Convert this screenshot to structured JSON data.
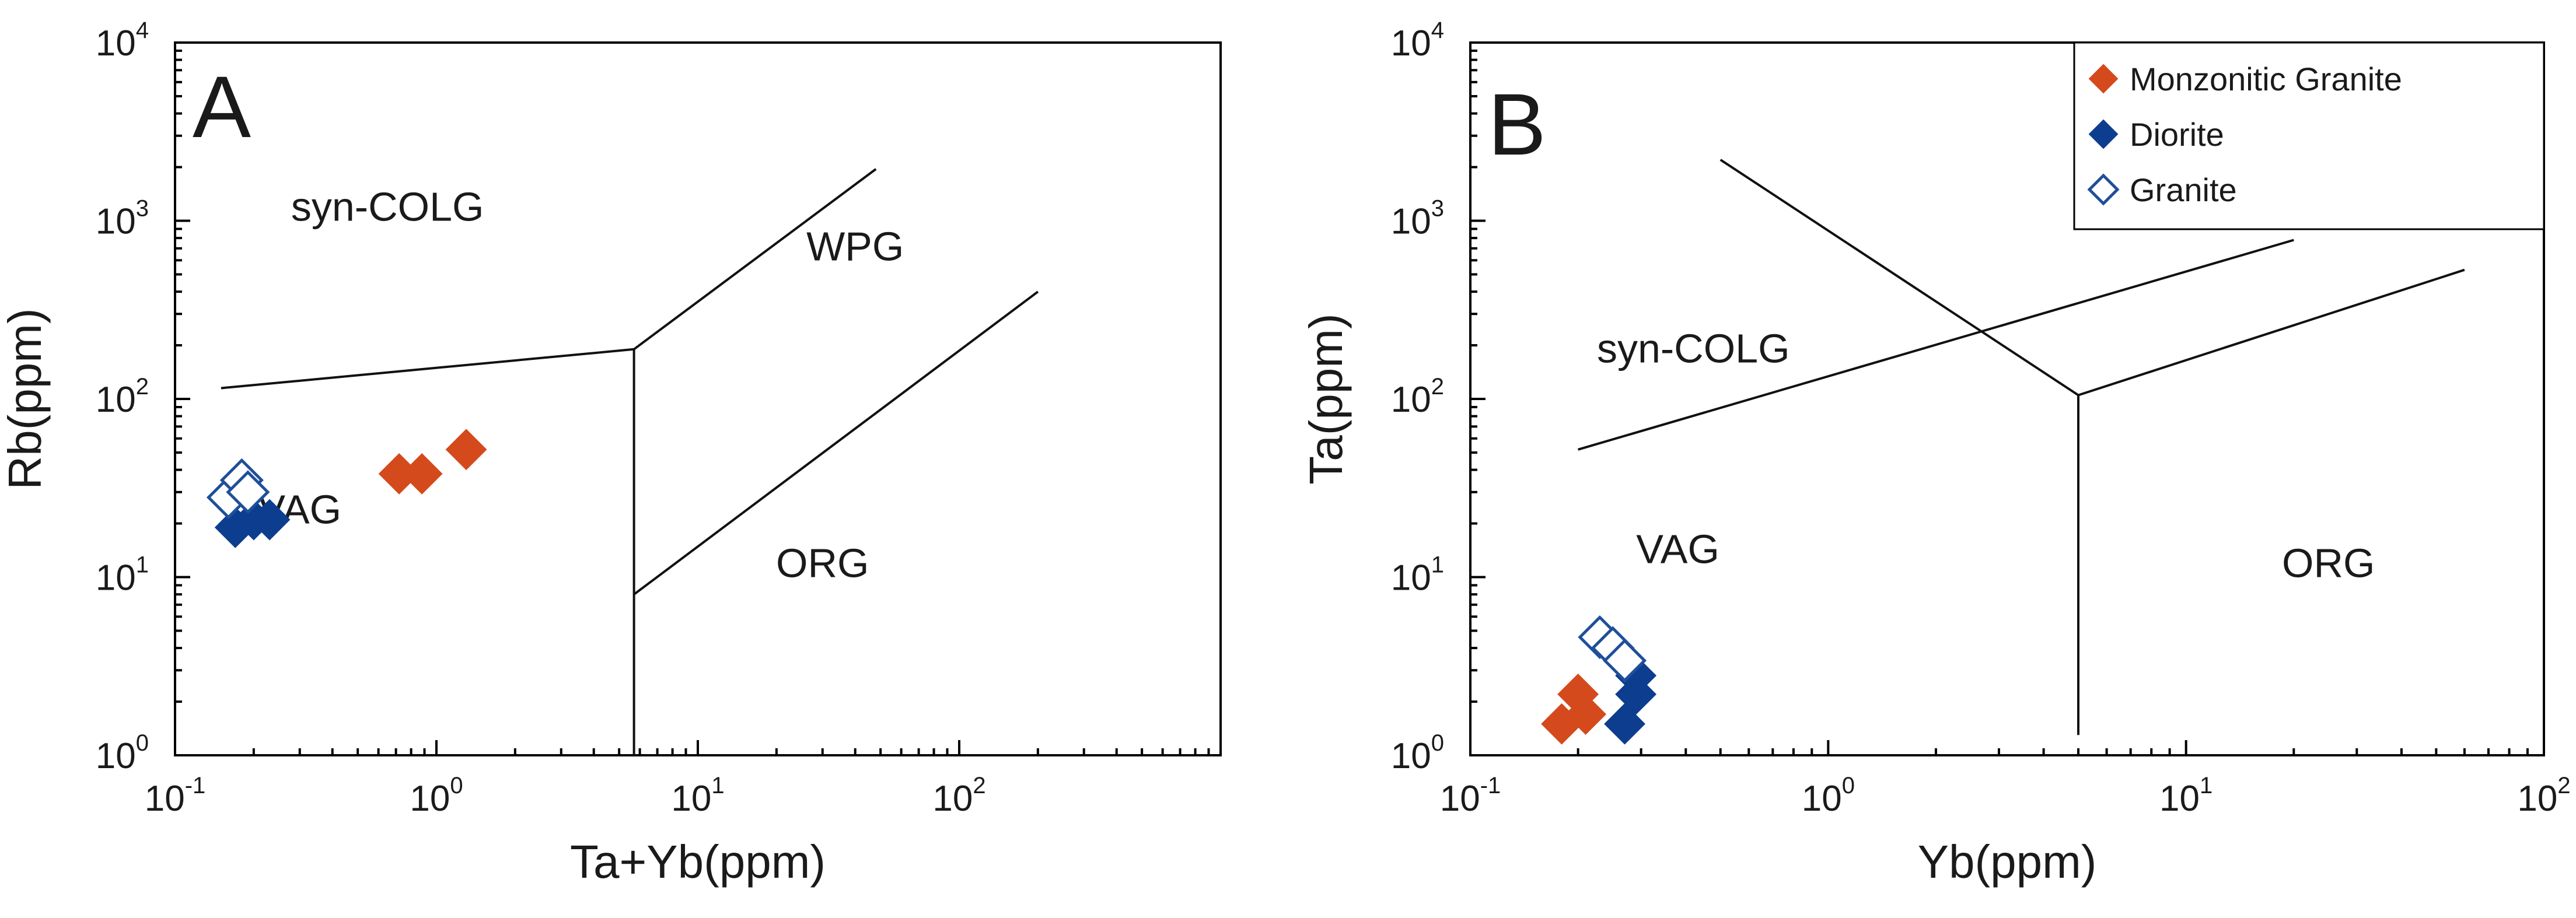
{
  "colors": {
    "monzonitic_granite": "#d44a1c",
    "diorite": "#0d3d8f",
    "granite": "#1f4f9a",
    "line": "#111111"
  },
  "chart_data": [
    {
      "type": "scatter",
      "panel": "A",
      "xscale": "log",
      "yscale": "log",
      "xlim": [
        0.1,
        1000
      ],
      "ylim": [
        1,
        10000
      ],
      "xlabel": "Ta+Yb(ppm)",
      "ylabel": "Rb(ppm)",
      "x_ticks": [
        {
          "value": 0.1,
          "base": "10",
          "exp": "-1"
        },
        {
          "value": 1,
          "base": "10",
          "exp": "0"
        },
        {
          "value": 10,
          "base": "10",
          "exp": "1"
        },
        {
          "value": 100,
          "base": "10",
          "exp": "2"
        }
      ],
      "y_ticks": [
        {
          "value": 1,
          "base": "10",
          "exp": "0"
        },
        {
          "value": 10,
          "base": "10",
          "exp": "1"
        },
        {
          "value": 100,
          "base": "10",
          "exp": "2"
        },
        {
          "value": 1000,
          "base": "10",
          "exp": "3"
        },
        {
          "value": 10000,
          "base": "10",
          "exp": "4"
        }
      ],
      "boundaries": [
        {
          "name": "syn-COLG / VAG",
          "points": [
            [
              0.15,
              115
            ],
            [
              5.7,
              190
            ]
          ]
        },
        {
          "name": "VAG / ORG vertical",
          "points": [
            [
              5.7,
              1
            ],
            [
              5.7,
              190
            ]
          ]
        },
        {
          "name": "syn-COLG / WPG",
          "points": [
            [
              5.7,
              190
            ],
            [
              48,
              1950
            ]
          ]
        },
        {
          "name": "WPG / ORG",
          "points": [
            [
              5.7,
              8
            ],
            [
              200,
              400
            ]
          ]
        }
      ],
      "regions": [
        {
          "label": "syn-COLG",
          "x": 0.65,
          "y": 1000
        },
        {
          "label": "WPG",
          "x": 40,
          "y": 600
        },
        {
          "label": "VAG",
          "x": 0.3,
          "y": 20
        },
        {
          "label": "ORG",
          "x": 30,
          "y": 10
        }
      ],
      "series": [
        {
          "name": "Monzonitic Granite",
          "marker": "filled-diamond",
          "color": "#d44a1c",
          "points": [
            [
              0.72,
              38
            ],
            [
              0.88,
              38
            ],
            [
              1.3,
              52
            ]
          ]
        },
        {
          "name": "Diorite",
          "marker": "filled-diamond",
          "color": "#0d3d8f",
          "points": [
            [
              0.17,
              19
            ],
            [
              0.2,
              21
            ],
            [
              0.23,
              21
            ]
          ]
        },
        {
          "name": "Granite",
          "marker": "open-diamond",
          "color": "#1f4f9a",
          "points": [
            [
              0.16,
              28
            ],
            [
              0.18,
              35
            ],
            [
              0.19,
              30
            ]
          ]
        }
      ]
    },
    {
      "type": "scatter",
      "panel": "B",
      "xscale": "log",
      "yscale": "log",
      "xlim": [
        0.1,
        100
      ],
      "ylim": [
        1,
        10000
      ],
      "xlabel": "Yb(ppm)",
      "ylabel": "Ta(ppm)",
      "x_ticks": [
        {
          "value": 0.1,
          "base": "10",
          "exp": "-1"
        },
        {
          "value": 1,
          "base": "10",
          "exp": "0"
        },
        {
          "value": 10,
          "base": "10",
          "exp": "1"
        },
        {
          "value": 100,
          "base": "10",
          "exp": "2"
        }
      ],
      "y_ticks": [
        {
          "value": 1,
          "base": "10",
          "exp": "0"
        },
        {
          "value": 10,
          "base": "10",
          "exp": "1"
        },
        {
          "value": 100,
          "base": "10",
          "exp": "2"
        },
        {
          "value": 1000,
          "base": "10",
          "exp": "3"
        },
        {
          "value": 10000,
          "base": "10",
          "exp": "4"
        }
      ],
      "boundaries": [
        {
          "name": "syn-COLG / WPG oblique",
          "points": [
            [
              0.5,
              2200
            ],
            [
              5,
              105
            ]
          ]
        },
        {
          "name": "VAG / ORG vertical",
          "points": [
            [
              5,
              105
            ],
            [
              5,
              1.3
            ]
          ]
        },
        {
          "name": "syn-COLG + WPG / VAG",
          "points": [
            [
              0.2,
              52
            ],
            [
              20,
              780
            ]
          ]
        },
        {
          "name": "WPG / ORG",
          "points": [
            [
              5,
              105
            ],
            [
              60,
              530
            ]
          ]
        }
      ],
      "regions": [
        {
          "label": "syn-COLG",
          "x": 0.42,
          "y": 160
        },
        {
          "label": "VAG",
          "x": 0.38,
          "y": 12
        },
        {
          "label": "ORG",
          "x": 25,
          "y": 10
        }
      ],
      "legend": {
        "position": "top-right",
        "entries": [
          {
            "label": "Monzonitic Granite",
            "marker": "filled-diamond",
            "color": "#d44a1c"
          },
          {
            "label": "Diorite",
            "marker": "filled-diamond",
            "color": "#0d3d8f"
          },
          {
            "label": "Granite",
            "marker": "open-diamond",
            "color": "#1f4f9a"
          }
        ]
      },
      "series": [
        {
          "name": "Monzonitic Granite",
          "marker": "filled-diamond",
          "color": "#d44a1c",
          "points": [
            [
              0.18,
              1.5
            ],
            [
              0.2,
              2.2
            ],
            [
              0.21,
              1.7
            ]
          ]
        },
        {
          "name": "Diorite",
          "marker": "filled-diamond",
          "color": "#0d3d8f",
          "points": [
            [
              0.27,
              1.5
            ],
            [
              0.29,
              2.2
            ],
            [
              0.29,
              2.8
            ]
          ]
        },
        {
          "name": "Granite",
          "marker": "open-diamond",
          "color": "#1f4f9a",
          "points": [
            [
              0.23,
              4.6
            ],
            [
              0.25,
              4.0
            ],
            [
              0.27,
              3.4
            ]
          ]
        }
      ]
    }
  ]
}
